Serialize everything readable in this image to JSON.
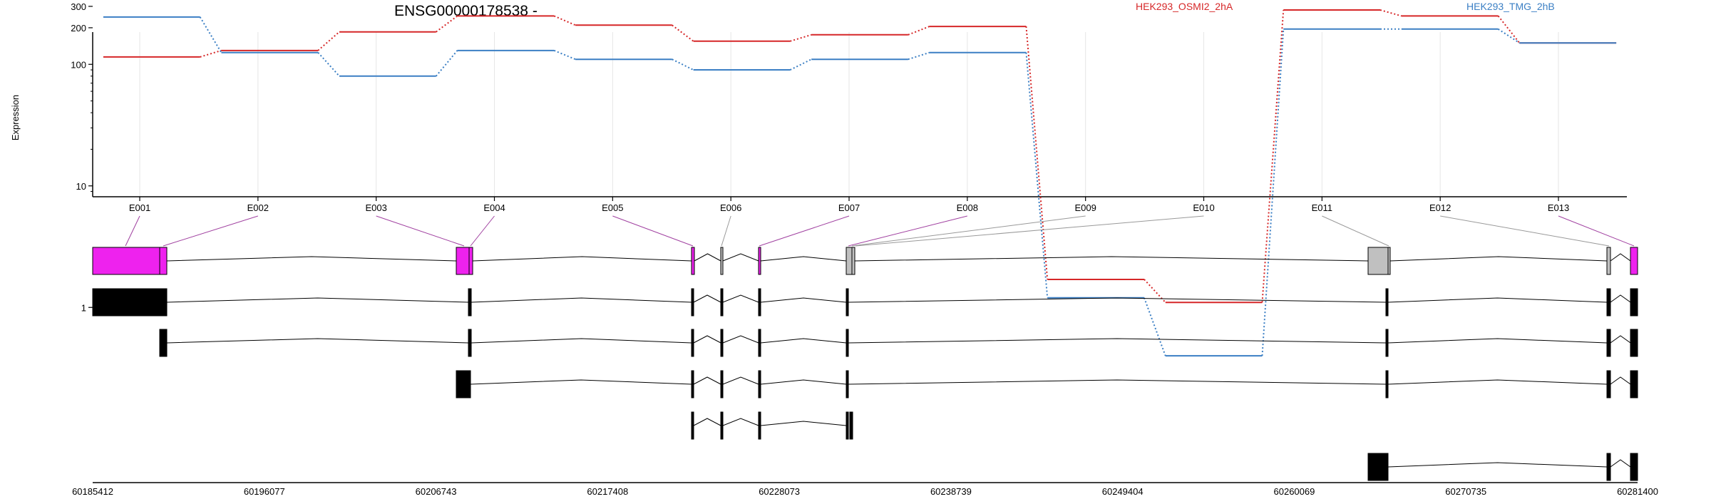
{
  "chart_data": {
    "type": "line",
    "title": "ENSG00000178538 -",
    "ylabel": "Expression",
    "yscale": "log",
    "yticks": [
      1,
      10,
      100,
      200,
      300
    ],
    "categories": [
      "E001",
      "E002",
      "E003",
      "E004",
      "E005",
      "E006",
      "E007",
      "E008",
      "E009",
      "E010",
      "E011",
      "E012",
      "E013"
    ],
    "series": [
      {
        "name": "HEK293_OSMI2_2hA",
        "color": "#d62728",
        "values": [
          115,
          130,
          185,
          250,
          210,
          155,
          175,
          205,
          1.7,
          1.1,
          280,
          250,
          150
        ]
      },
      {
        "name": "HEK293_TMG_2hB",
        "color": "#3b7fc4",
        "values": [
          245,
          125,
          80,
          130,
          110,
          90,
          110,
          125,
          1.2,
          0.4,
          195,
          195,
          150
        ]
      }
    ],
    "legend_position": "top",
    "grid": "vertical",
    "genomic_axis": {
      "ticks": [
        "60185412",
        "60196077",
        "60206743",
        "60217408",
        "60228073",
        "60238739",
        "60249404",
        "60260069",
        "60270735",
        "60281400"
      ]
    },
    "gene_model": {
      "exon_color": "#ee22ee",
      "exon_alt_color": "#c0c0c0",
      "connector_color": "#a040a0",
      "connector_alt_color": "#999999",
      "transcript_count": 6
    }
  }
}
